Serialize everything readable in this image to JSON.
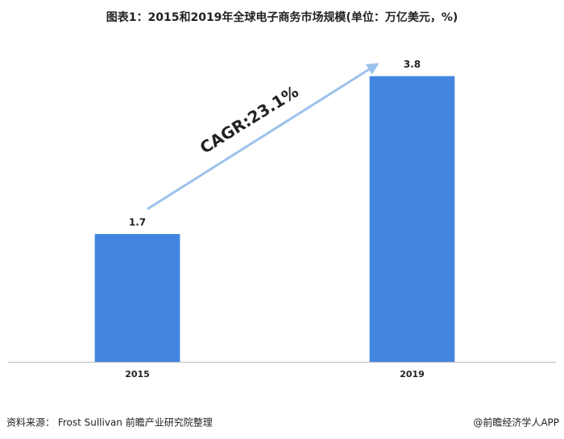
{
  "chart_data": {
    "type": "bar",
    "title": "图表1：2015和2019年全球电子商务市场规模(单位：万亿美元，%)",
    "categories": [
      "2015",
      "2019"
    ],
    "values": [
      1.7,
      3.8
    ],
    "color": "#4285e0",
    "ylim": [
      0,
      4
    ],
    "annotation": "CAGR:23.1%",
    "source": "资料来源： Frost Sullivan 前瞻产业研究院整理",
    "credit": "@前瞻经济学人APP"
  }
}
